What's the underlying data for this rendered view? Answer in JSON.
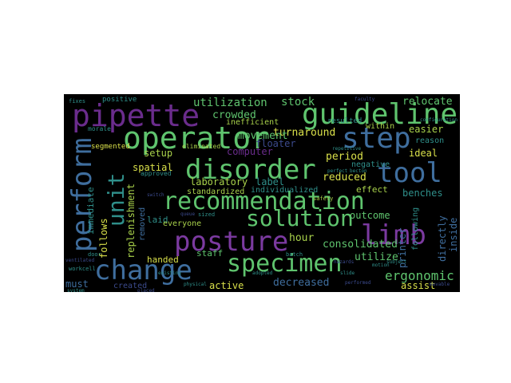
{
  "palette": {
    "purple": "#6a2c8c",
    "violet": "#7b3aa0",
    "blue": "#3f6e9e",
    "teal": "#2f8f8a",
    "green": "#5fc46e",
    "lime": "#a9d24b",
    "yellow": "#d9e04a",
    "navy": "#3b4a8c"
  },
  "words": [
    {
      "text": "pipette",
      "color": "#6a2c8c"
    },
    {
      "text": "guideline",
      "color": "#5fc46e"
    },
    {
      "text": "operator",
      "color": "#5fc46e"
    },
    {
      "text": "step",
      "color": "#3f6e9e"
    },
    {
      "text": "disorder",
      "color": "#5fc46e"
    },
    {
      "text": "tool",
      "color": "#3f6e9e"
    },
    {
      "text": "recommendation",
      "color": "#5fc46e"
    },
    {
      "text": "perform",
      "color": "#3f6e9e"
    },
    {
      "text": "unit",
      "color": "#2f8f8a"
    },
    {
      "text": "change",
      "color": "#3f6e9e"
    },
    {
      "text": "posture",
      "color": "#7b3aa0"
    },
    {
      "text": "limb",
      "color": "#7b3aa0"
    },
    {
      "text": "solution",
      "color": "#5fc46e"
    },
    {
      "text": "specimen",
      "color": "#5fc46e"
    },
    {
      "text": "ergonomic",
      "color": "#5fc46e"
    },
    {
      "text": "utilization",
      "color": "#5fc46e"
    },
    {
      "text": "stock",
      "color": "#5fc46e"
    },
    {
      "text": "relocate",
      "color": "#5fc46e"
    },
    {
      "text": "crowded",
      "color": "#5fc46e"
    },
    {
      "text": "inefficient",
      "color": "#a9d24b"
    },
    {
      "text": "turnaround",
      "color": "#d9e04a"
    },
    {
      "text": "floater",
      "color": "#3b4a8c"
    },
    {
      "text": "computer",
      "color": "#6a2c8c"
    },
    {
      "text": "period",
      "color": "#d9e04a"
    },
    {
      "text": "easier",
      "color": "#a9d24b"
    },
    {
      "text": "reason",
      "color": "#2f8f8a"
    },
    {
      "text": "ideal",
      "color": "#d9e04a"
    },
    {
      "text": "negative",
      "color": "#2f8f8a"
    },
    {
      "text": "reduced",
      "color": "#d9e04a"
    },
    {
      "text": "setup",
      "color": "#a9d24b"
    },
    {
      "text": "spatial",
      "color": "#d9e04a"
    },
    {
      "text": "segmented",
      "color": "#d9e04a"
    },
    {
      "text": "within",
      "color": "#a9d24b"
    },
    {
      "text": "resulted",
      "color": "#2f8f8a"
    },
    {
      "text": "movement",
      "color": "#5fc46e"
    },
    {
      "text": "positive",
      "color": "#2f8f8a"
    },
    {
      "text": "morale",
      "color": "#2f8f8a"
    },
    {
      "text": "eliminated",
      "color": "#a9d24b"
    },
    {
      "text": "approved",
      "color": "#2f8f8a"
    },
    {
      "text": "laboratory",
      "color": "#a9d24b"
    },
    {
      "text": "label",
      "color": "#2f8f8a"
    },
    {
      "text": "standardized",
      "color": "#a9d24b"
    },
    {
      "text": "individualized",
      "color": "#2f8f8a"
    },
    {
      "text": "effect",
      "color": "#a9d24b"
    },
    {
      "text": "benches",
      "color": "#2f8f8a"
    },
    {
      "text": "outcome",
      "color": "#5fc46e"
    },
    {
      "text": "printer",
      "color": "#3f6e9e"
    },
    {
      "text": "directly",
      "color": "#3f6e9e"
    },
    {
      "text": "inside",
      "color": "#3f6e9e"
    },
    {
      "text": "following",
      "color": "#2f8f8a"
    },
    {
      "text": "immediate",
      "color": "#2f8f8a"
    },
    {
      "text": "replenishment",
      "color": "#a9d24b"
    },
    {
      "text": "follows",
      "color": "#d9e04a"
    },
    {
      "text": "removed",
      "color": "#3f6e9e"
    },
    {
      "text": "laid",
      "color": "#2f8f8a"
    },
    {
      "text": "everyone",
      "color": "#a9d24b"
    },
    {
      "text": "handed",
      "color": "#d9e04a"
    },
    {
      "text": "staff",
      "color": "#5fc46e"
    },
    {
      "text": "hour",
      "color": "#a9d24b"
    },
    {
      "text": "consolidated",
      "color": "#5fc46e"
    },
    {
      "text": "utilize",
      "color": "#5fc46e"
    },
    {
      "text": "must",
      "color": "#3f6e9e"
    },
    {
      "text": "created",
      "color": "#3b4a8c"
    },
    {
      "text": "active",
      "color": "#d9e04a"
    },
    {
      "text": "decreased",
      "color": "#3f6e9e"
    },
    {
      "text": "assist",
      "color": "#d9e04a"
    },
    {
      "text": "batch",
      "color": "#2f8f8a"
    },
    {
      "text": "safety",
      "color": "#a9d24b"
    },
    {
      "text": "sized",
      "color": "#2f8f8a"
    },
    {
      "text": "queue",
      "color": "#3b4a8c"
    },
    {
      "text": "switch",
      "color": "#3b4a8c"
    },
    {
      "text": "hazards",
      "color": "#3b4a8c"
    },
    {
      "text": "door",
      "color": "#2f8f8a"
    },
    {
      "text": "workcell",
      "color": "#2f8f8a"
    },
    {
      "text": "performed",
      "color": "#3b4a8c"
    },
    {
      "text": "placed",
      "color": "#3b4a8c"
    },
    {
      "text": "perfect",
      "color": "#2f8f8a"
    },
    {
      "text": "becton",
      "color": "#2f8f8a"
    },
    {
      "text": "configuration",
      "color": "#2f8f8a"
    },
    {
      "text": "faculty",
      "color": "#3b4a8c"
    },
    {
      "text": "repetitive",
      "color": "#2f8f8a"
    },
    {
      "text": "subject",
      "color": "#2f8f8a"
    },
    {
      "text": "motion",
      "color": "#2f8f8a"
    },
    {
      "text": "slide",
      "color": "#2f8f8a"
    },
    {
      "text": "system",
      "color": "#2f8f8a"
    },
    {
      "text": "ventilated",
      "color": "#3b4a8c"
    },
    {
      "text": "fixes",
      "color": "#2f8f8a"
    },
    {
      "text": "movable",
      "color": "#3b4a8c"
    },
    {
      "text": "physical",
      "color": "#2f8f8a"
    },
    {
      "text": "adopted",
      "color": "#2f8f8a"
    },
    {
      "text": "existing",
      "color": "#2f8f8a"
    }
  ]
}
